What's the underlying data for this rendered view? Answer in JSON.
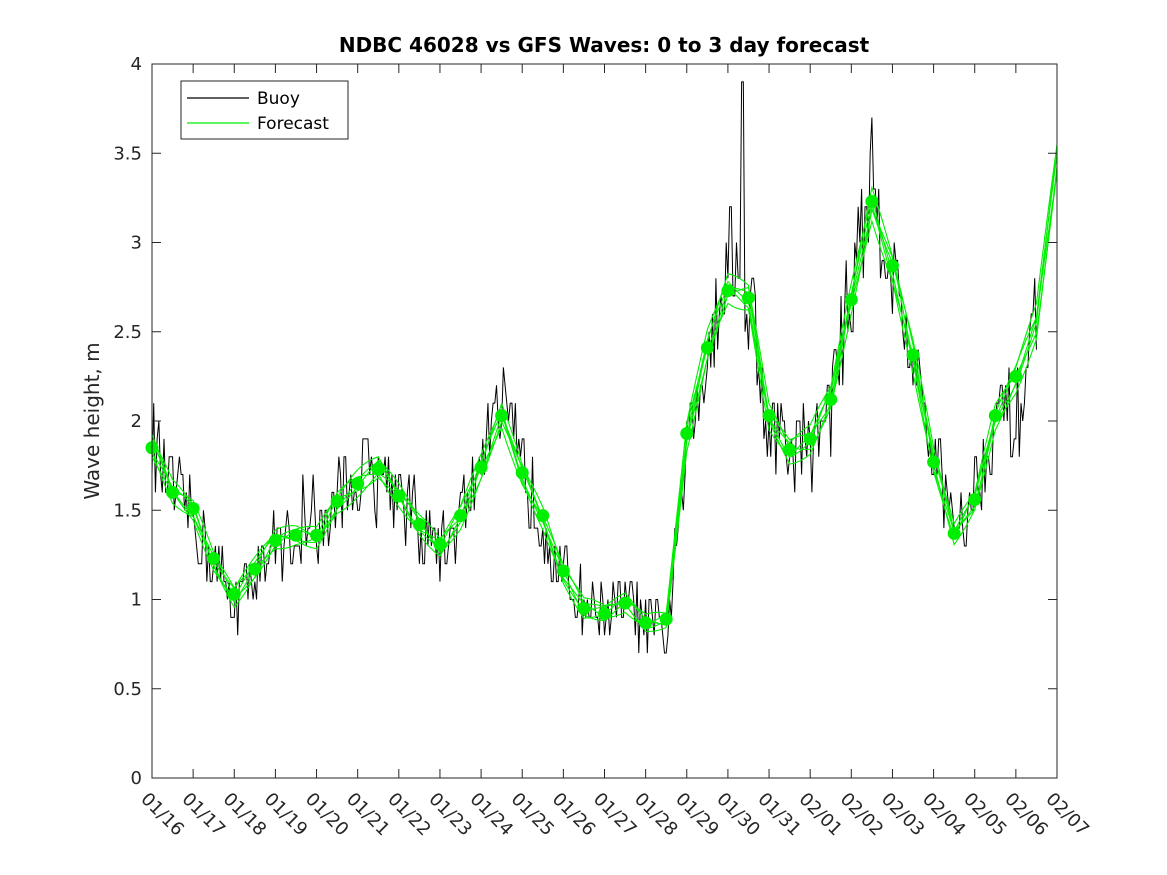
{
  "chart_data": {
    "type": "line",
    "title": "NDBC 46028 vs GFS Waves: 0 to 3 day forecast",
    "ylabel": "Wave height, m",
    "xlabel": "",
    "ylim": [
      0,
      4
    ],
    "yticks": [
      0,
      0.5,
      1,
      1.5,
      2,
      2.5,
      3,
      3.5,
      4
    ],
    "x_tick_labels": [
      "01/16",
      "01/17",
      "01/18",
      "01/19",
      "01/20",
      "01/21",
      "01/22",
      "01/23",
      "01/24",
      "01/25",
      "01/26",
      "01/27",
      "01/28",
      "01/29",
      "01/30",
      "01/31",
      "02/01",
      "02/02",
      "02/03",
      "02/04",
      "02/05",
      "02/06",
      "02/07"
    ],
    "xlim_days": [
      0,
      22
    ],
    "grid": false,
    "legend": {
      "placement": "top-left",
      "entries": [
        "Buoy",
        "Forecast"
      ]
    },
    "colors": {
      "buoy": "#000000",
      "forecast": "#00ee00",
      "marker": "#00ee00"
    },
    "series": [
      {
        "name": "Buoy",
        "x_days": [
          0,
          0.5,
          1,
          1.5,
          2,
          2.5,
          3,
          3.5,
          4,
          4.5,
          5,
          5.5,
          6,
          6.5,
          7,
          7.5,
          8,
          8.5,
          9,
          9.5,
          10,
          10.5,
          11,
          11.5,
          12,
          12.5,
          13,
          13.5,
          14,
          14.5,
          15,
          15.5,
          16,
          16.5,
          17,
          17.5,
          18,
          18.5,
          19,
          19.5,
          20,
          20.5,
          21,
          21.5
        ],
        "values": [
          1.87,
          1.6,
          1.45,
          1.2,
          0.98,
          1.15,
          1.32,
          1.38,
          1.35,
          1.55,
          1.68,
          1.75,
          1.6,
          1.42,
          1.28,
          1.45,
          1.8,
          2.05,
          1.72,
          1.45,
          1.12,
          0.97,
          0.95,
          0.98,
          0.86,
          0.78,
          1.8,
          2.45,
          2.95,
          2.75,
          1.95,
          1.85,
          1.85,
          2.1,
          2.75,
          3.35,
          2.85,
          2.35,
          1.75,
          1.45,
          1.6,
          2.05,
          2.0,
          2.6
        ]
      },
      {
        "name": "Forecast",
        "x_days": [
          0,
          0.5,
          1,
          1.5,
          2,
          2.5,
          3,
          3.5,
          4,
          4.5,
          5,
          5.5,
          6,
          6.5,
          7,
          7.5,
          8,
          8.5,
          9,
          9.5,
          10,
          10.5,
          11,
          11.5,
          12,
          12.5,
          13,
          13.5,
          14,
          14.5,
          15,
          15.5,
          16,
          16.5,
          17,
          17.5,
          18,
          18.5,
          19,
          19.5,
          20,
          20.5,
          21,
          21.5,
          22
        ],
        "values": [
          1.85,
          1.6,
          1.5,
          1.22,
          1.02,
          1.17,
          1.33,
          1.36,
          1.35,
          1.55,
          1.65,
          1.73,
          1.58,
          1.42,
          1.3,
          1.47,
          1.73,
          2.02,
          1.7,
          1.46,
          1.15,
          0.95,
          0.92,
          0.98,
          0.87,
          0.89,
          1.92,
          2.41,
          2.73,
          2.69,
          2.03,
          1.84,
          1.89,
          2.12,
          2.68,
          3.22,
          2.87,
          2.37,
          1.77,
          1.36,
          1.55,
          2.03,
          2.25,
          2.55,
          3.45
        ]
      },
      {
        "name": "Forecast markers",
        "x_days": [
          0,
          0.5,
          1,
          1.5,
          2,
          2.5,
          3,
          3.5,
          4,
          4.5,
          5,
          5.5,
          6,
          6.5,
          7,
          7.5,
          8,
          8.5,
          9,
          9.5,
          10,
          10.5,
          11,
          11.5,
          12,
          12.5,
          13,
          13.5,
          14,
          14.5,
          15,
          15.5,
          16,
          16.5,
          17,
          17.5,
          18,
          18.5,
          19,
          19.5,
          20,
          20.5,
          21
        ],
        "values": [
          1.85,
          1.6,
          1.51,
          1.23,
          1.03,
          1.17,
          1.33,
          1.36,
          1.36,
          1.55,
          1.65,
          1.73,
          1.58,
          1.42,
          1.31,
          1.47,
          1.74,
          2.03,
          1.71,
          1.47,
          1.16,
          0.95,
          0.92,
          0.98,
          0.87,
          0.89,
          1.93,
          2.41,
          2.73,
          2.69,
          2.03,
          1.84,
          1.9,
          2.12,
          2.68,
          3.23,
          2.87,
          2.37,
          1.77,
          1.37,
          1.56,
          2.03,
          2.25
        ]
      }
    ]
  }
}
